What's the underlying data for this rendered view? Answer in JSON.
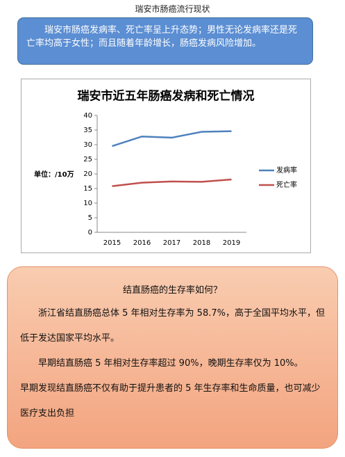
{
  "header": {
    "title": "瑞安市肠癌流行现状"
  },
  "summary": {
    "text": "瑞安市肠癌发病率、死亡率呈上升态势；男性无论发病率还是死亡率均高于女性；而且随着年龄增长，肠癌发病风险增加。"
  },
  "chart_data": {
    "type": "line",
    "title": "瑞安市近五年肠癌发病和死亡情况",
    "y_label": "单位：/10万",
    "categories": [
      "2015",
      "2016",
      "2017",
      "2018",
      "2019"
    ],
    "series": [
      {
        "name": "发病率",
        "color": "#4f81bd",
        "values": [
          29.5,
          32.8,
          32.4,
          34.4,
          34.6
        ]
      },
      {
        "name": "死亡率",
        "color": "#c0504d",
        "values": [
          15.8,
          17.0,
          17.4,
          17.3,
          18.1
        ]
      }
    ],
    "ylim": [
      0,
      40
    ],
    "yticks": [
      0,
      5,
      10,
      15,
      20,
      25,
      30,
      35,
      40
    ],
    "grid": false,
    "legend": "right"
  },
  "card": {
    "title": "结直肠癌的生存率如何？",
    "paragraphs": [
      "浙江省结直肠癌总体 5 年相对生存率为 58.7%，高于全国平均水平，但低于发达国家平均水平。",
      "早期结直肠癌 5 年相对生存率超过 90%，晚期生存率仅为 10%。",
      "早期发现结直肠癌不仅有助于提升患者的 5 年生存率和生命质量，也可减少医疗支出负担"
    ]
  }
}
